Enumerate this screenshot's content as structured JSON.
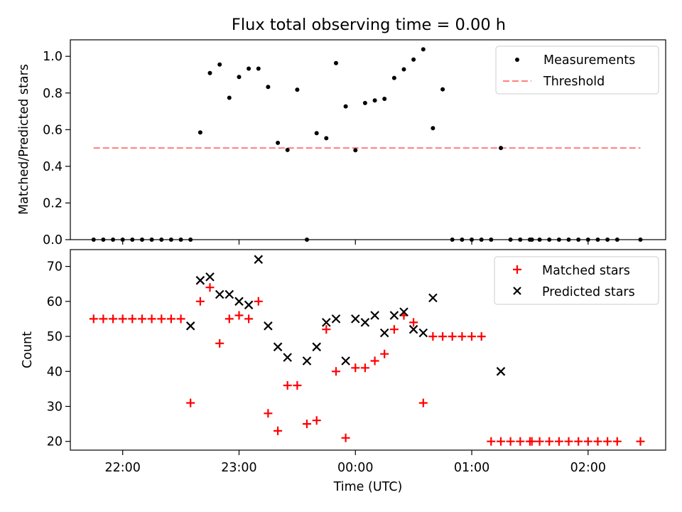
{
  "title": "Flux total observing time = 0.00 h",
  "colors": {
    "measurement": "#000000",
    "threshold": "#ff7f7f",
    "matched": "#ff0000",
    "predicted": "#000000"
  },
  "chart_data": [
    {
      "type": "scatter",
      "title": "Flux total observing time = 0.00 h",
      "ylabel": "Matched/Predicted stars",
      "xlabel": "",
      "ylim": [
        0,
        1.09
      ],
      "yticks": [
        "0.0",
        "0.2",
        "0.4",
        "0.6",
        "0.8",
        "1.0"
      ],
      "legend": {
        "position": "top-right",
        "items": [
          "Measurements",
          "Threshold"
        ]
      },
      "threshold": {
        "name": "Threshold",
        "value": 0.5,
        "x_range": [
          "21:45",
          "02:27"
        ]
      },
      "series": [
        {
          "name": "Measurements",
          "marker": "dot",
          "x": [
            "21:45",
            "21:50",
            "21:55",
            "22:00",
            "22:05",
            "22:10",
            "22:15",
            "22:20",
            "22:25",
            "22:30",
            "22:35",
            "22:40",
            "22:45",
            "22:50",
            "22:55",
            "23:00",
            "23:05",
            "23:10",
            "23:15",
            "23:20",
            "23:25",
            "23:30",
            "23:35",
            "23:40",
            "23:45",
            "23:50",
            "23:55",
            "00:00",
            "00:05",
            "00:10",
            "00:15",
            "00:20",
            "00:25",
            "00:30",
            "00:35",
            "00:40",
            "00:45",
            "00:50",
            "00:55",
            "01:00",
            "01:05",
            "01:10",
            "01:15",
            "01:20",
            "01:25",
            "01:30",
            "01:31",
            "01:35",
            "01:40",
            "01:45",
            "01:50",
            "01:55",
            "02:00",
            "02:05",
            "02:10",
            "02:15",
            "02:27"
          ],
          "y": [
            0,
            0,
            0,
            0,
            0,
            0,
            0,
            0,
            0,
            0,
            0,
            0.585,
            0.909,
            0.955,
            0.774,
            0.887,
            0.933,
            0.933,
            0.833,
            0.528,
            0.489,
            0.818,
            0,
            0.581,
            0.553,
            0.963,
            0.727,
            0.488,
            0.745,
            0.759,
            0.768,
            0.882,
            0.929,
            0.982,
            1.038,
            0.608,
            0.82,
            0,
            0,
            0,
            0,
            0,
            0.5,
            0,
            0,
            0,
            0,
            0,
            0,
            0,
            0,
            0,
            0,
            0,
            0,
            0,
            0
          ]
        }
      ]
    },
    {
      "type": "scatter",
      "title": "",
      "ylabel": "Count",
      "xlabel": "Time (UTC)",
      "ylim": [
        17.5,
        74.8
      ],
      "yticks": [
        "20",
        "30",
        "40",
        "50",
        "60",
        "70"
      ],
      "xlim": [
        "21:33",
        "02:40"
      ],
      "xticks": [
        "22:00",
        "23:00",
        "00:00",
        "01:00",
        "02:00"
      ],
      "legend": {
        "position": "top-right",
        "items": [
          "Matched stars",
          "Predicted stars"
        ]
      },
      "series": [
        {
          "name": "Matched stars",
          "marker": "plus",
          "x": [
            "21:45",
            "21:50",
            "21:55",
            "22:00",
            "22:05",
            "22:10",
            "22:15",
            "22:20",
            "22:25",
            "22:30",
            "22:35",
            "22:40",
            "22:45",
            "22:50",
            "22:55",
            "23:00",
            "23:05",
            "23:10",
            "23:15",
            "23:20",
            "23:25",
            "23:30",
            "23:35",
            "23:40",
            "23:45",
            "23:50",
            "23:55",
            "00:00",
            "00:05",
            "00:10",
            "00:15",
            "00:20",
            "00:25",
            "00:30",
            "00:35",
            "00:40",
            "00:45",
            "00:50",
            "00:55",
            "01:00",
            "01:05",
            "01:10",
            "01:15",
            "01:20",
            "01:25",
            "01:30",
            "01:31",
            "01:35",
            "01:40",
            "01:45",
            "01:50",
            "01:55",
            "02:00",
            "02:05",
            "02:10",
            "02:15",
            "02:27"
          ],
          "y": [
            55,
            55,
            55,
            55,
            55,
            55,
            55,
            55,
            55,
            55,
            31,
            60,
            64,
            48,
            55,
            56,
            55,
            60,
            28,
            23,
            36,
            36,
            25,
            26,
            52,
            40,
            21,
            41,
            41,
            43,
            45,
            52,
            56,
            54,
            31,
            50,
            50,
            50,
            50,
            50,
            50,
            20,
            20,
            20,
            20,
            20,
            20,
            20,
            20,
            20,
            20,
            20,
            20,
            20,
            20,
            20,
            20
          ]
        },
        {
          "name": "Predicted stars",
          "marker": "x",
          "x": [
            "22:35",
            "22:40",
            "22:45",
            "22:50",
            "22:55",
            "23:00",
            "23:05",
            "23:10",
            "23:15",
            "23:20",
            "23:25",
            "23:35",
            "23:40",
            "23:45",
            "23:50",
            "23:55",
            "00:00",
            "00:05",
            "00:10",
            "00:15",
            "00:20",
            "00:25",
            "00:30",
            "00:35",
            "00:40",
            "01:15"
          ],
          "y": [
            53,
            66,
            67,
            62,
            62,
            60,
            59,
            72,
            53,
            47,
            44,
            43,
            47,
            54,
            55,
            43,
            55,
            54,
            56,
            51,
            56,
            57,
            52,
            51,
            61,
            40
          ]
        }
      ]
    }
  ]
}
